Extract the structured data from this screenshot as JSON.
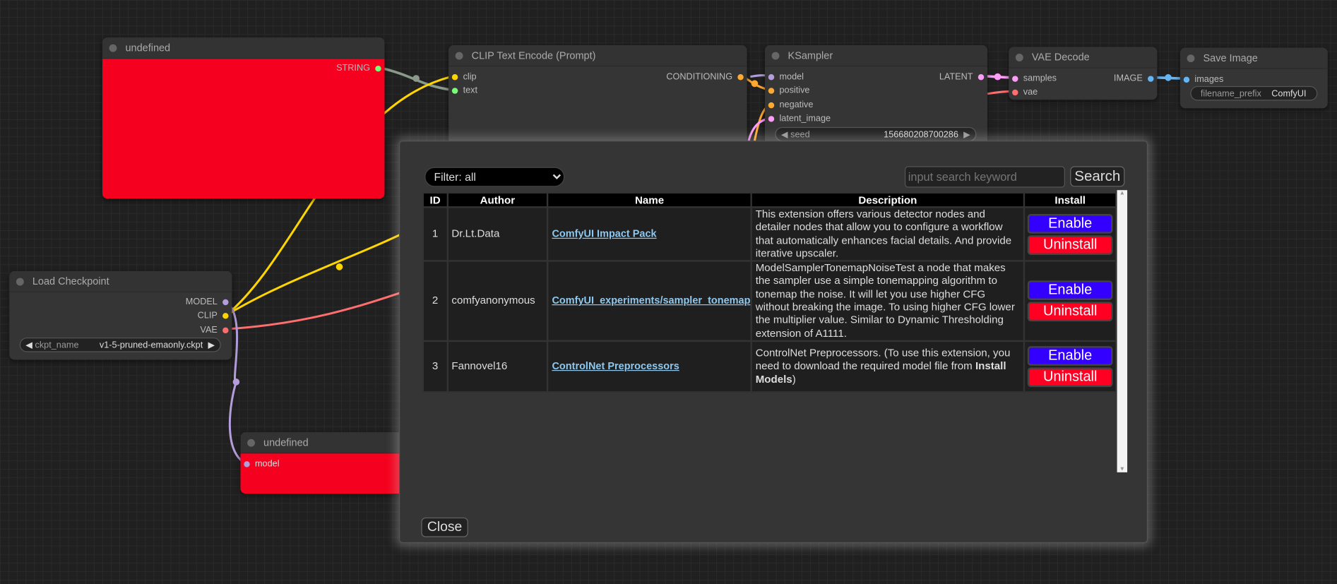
{
  "canvas": {
    "nodes": {
      "undefined_top": {
        "title": "undefined",
        "outputs": [
          "STRING"
        ],
        "body_color": "#f5001e"
      },
      "clip_text_encode": {
        "title": "CLIP Text Encode (Prompt)",
        "inputs": [
          "clip",
          "text"
        ],
        "outputs": [
          "CONDITIONING"
        ]
      },
      "ksampler": {
        "title": "KSampler",
        "inputs": [
          "model",
          "positive",
          "negative",
          "latent_image"
        ],
        "outputs": [
          "LATENT"
        ],
        "seed_label": "seed",
        "seed_value": "156680208700286"
      },
      "vae_decode": {
        "title": "VAE Decode",
        "inputs": [
          "samples",
          "vae"
        ],
        "outputs": [
          "IMAGE"
        ]
      },
      "save_image": {
        "title": "Save Image",
        "inputs": [
          "images"
        ],
        "widget_label": "filename_prefix",
        "widget_value": "ComfyUI"
      },
      "load_checkpoint": {
        "title": "Load Checkpoint",
        "outputs": [
          "MODEL",
          "CLIP",
          "VAE"
        ],
        "widget_label": "ckpt_name",
        "widget_value": "v1-5-pruned-emaonly.ckpt"
      },
      "undefined_bottom": {
        "title": "undefined",
        "inputs": [
          "model"
        ]
      }
    },
    "slot_colors": {
      "model": "#b39ddb",
      "clip": "#ffd500",
      "vae": "#ff6e6e",
      "conditioning": "#ffa931",
      "latent": "#ff9cf9",
      "image": "#64b5f6",
      "string": "#77ff77"
    }
  },
  "dialog": {
    "filter": "Filter: all",
    "search_placeholder": "input search keyword",
    "search_label": "Search",
    "close_label": "Close",
    "columns": [
      "ID",
      "Author",
      "Name",
      "Description",
      "Install"
    ],
    "rows": [
      {
        "id": "1",
        "author": "Dr.Lt.Data",
        "name": "ComfyUI Impact Pack",
        "description": "This extension offers various detector nodes and detailer nodes that allow you to configure a workflow that automatically enhances facial details. And provide iterative upscaler.",
        "enable": "Enable",
        "uninstall": "Uninstall"
      },
      {
        "id": "2",
        "author": "comfyanonymous",
        "name": "ComfyUI_experiments/sampler_tonemap",
        "description": "ModelSamplerTonemapNoiseTest a node that makes the sampler use a simple tonemapping algorithm to tonemap the noise. It will let you use higher CFG without breaking the image. To using higher CFG lower the multiplier value. Similar to Dynamic Thresholding extension of A1111.",
        "enable": "Enable",
        "uninstall": "Uninstall"
      },
      {
        "id": "3",
        "author": "Fannovel16",
        "name": "ControlNet Preprocessors",
        "description_pre": "ControlNet Preprocessors. (To use this extension, you need to download the required model file from ",
        "description_bold": "Install Models",
        "description_post": ")",
        "enable": "Enable",
        "uninstall": "Uninstall"
      }
    ],
    "button_colors": {
      "enable": "#3300ff",
      "uninstall": "#ff0022"
    }
  }
}
